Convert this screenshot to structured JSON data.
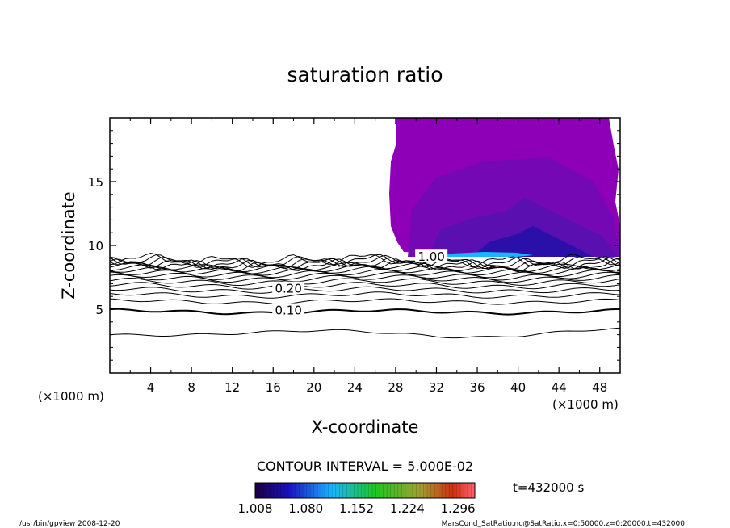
{
  "chart_data": {
    "type": "contour",
    "title": "saturation ratio",
    "xlabel": "X-coordinate",
    "ylabel": "Z-coordinate",
    "x_unit_left": "(×1000 m)",
    "x_unit_right": "(×1000 m)",
    "xlim": [
      0,
      50
    ],
    "ylim": [
      0,
      20
    ],
    "x_ticks": [
      "4",
      "8",
      "12",
      "16",
      "20",
      "24",
      "28",
      "32",
      "36",
      "40",
      "44",
      "48"
    ],
    "y_ticks": [
      "5",
      "10",
      "15"
    ],
    "contour_interval_text": "CONTOUR INTERVAL = 5.000E-02",
    "time_text": "t=432000 s",
    "contour_labels": [
      {
        "text": "0.10",
        "x": 17.5,
        "z": 4.9
      },
      {
        "text": "0.20",
        "x": 17.5,
        "z": 6.6
      },
      {
        "text": "1.00",
        "x": 31.5,
        "z": 9.1
      }
    ],
    "contour_lines_z": [
      3.1,
      4.8,
      5.6,
      6.1,
      6.5,
      6.85,
      7.15,
      7.4,
      7.6,
      7.8,
      8.0,
      8.15,
      8.3,
      8.45,
      8.55,
      8.65,
      8.75,
      8.85
    ],
    "colorbar": {
      "ticks": [
        "1.008",
        "1.080",
        "1.152",
        "1.224",
        "1.296"
      ],
      "min": 1.008,
      "max": 1.32
    },
    "colors": {
      "supersaturated": "#8e00b8",
      "mid": "#5a0fb0",
      "deep": "#2a10a8",
      "edge": "#1ab4ff"
    }
  },
  "footer": {
    "left": "/usr/bin/gpview   2008-12-20",
    "right": "MarsCond_SatRatio.nc@SatRatio,x=0:50000,z=0:20000,t=432000"
  }
}
